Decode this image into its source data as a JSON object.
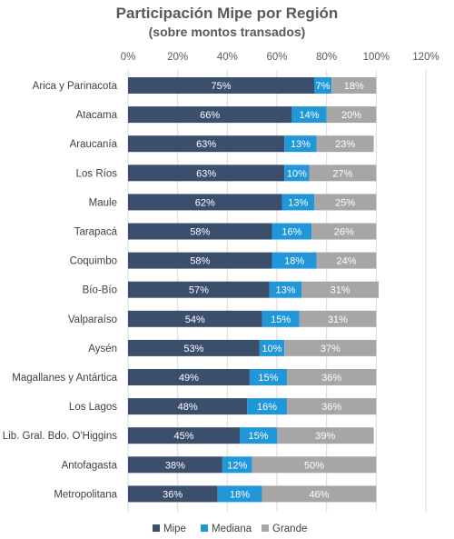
{
  "chart_data": {
    "type": "bar",
    "orientation": "horizontal",
    "stacked": true,
    "title": "Participación Mipe por Región",
    "subtitle": "(sobre montos transados)",
    "xlabel": "",
    "ylabel": "",
    "xlim": [
      0,
      120
    ],
    "x_ticks": [
      "0%",
      "20%",
      "40%",
      "60%",
      "80%",
      "100%",
      "120%"
    ],
    "grid": true,
    "legend_position": "bottom",
    "categories": [
      "Arica y Parinacota",
      "Atacama",
      "Araucanía",
      "Los Ríos",
      "Maule",
      "Tarapacá",
      "Coquimbo",
      "Bío-Bío",
      "Valparaíso",
      "Aysén",
      "Magallanes y Antártica",
      "Los Lagos",
      "Lib. Gral. Bdo. O'Higgins",
      "Antofagasta",
      "Metropolitana"
    ],
    "series": [
      {
        "name": "Mipe",
        "color": "#3b4e6b",
        "values": [
          75,
          66,
          63,
          63,
          62,
          58,
          58,
          57,
          54,
          53,
          49,
          48,
          45,
          38,
          36
        ],
        "labels": [
          "75%",
          "66%",
          "63%",
          "63%",
          "62%",
          "58%",
          "58%",
          "57%",
          "54%",
          "53%",
          "49%",
          "48%",
          "45%",
          "38%",
          "36%"
        ]
      },
      {
        "name": "Mediana",
        "color": "#2196d8",
        "values": [
          7,
          14,
          13,
          10,
          13,
          16,
          18,
          13,
          15,
          10,
          15,
          16,
          15,
          12,
          18
        ],
        "labels": [
          "7%",
          "14%",
          "13%",
          "10%",
          "13%",
          "16%",
          "18%",
          "13%",
          "15%",
          "10%",
          "15%",
          "16%",
          "15%",
          "12%",
          "18%"
        ]
      },
      {
        "name": "Grande",
        "color": "#a6a6a6",
        "values": [
          18,
          20,
          23,
          27,
          25,
          26,
          24,
          31,
          31,
          37,
          36,
          36,
          39,
          50,
          46
        ],
        "labels": [
          "18%",
          "20%",
          "23%",
          "27%",
          "25%",
          "26%",
          "24%",
          "31%",
          "31%",
          "37%",
          "36%",
          "36%",
          "39%",
          "50%",
          "46%"
        ]
      }
    ]
  }
}
